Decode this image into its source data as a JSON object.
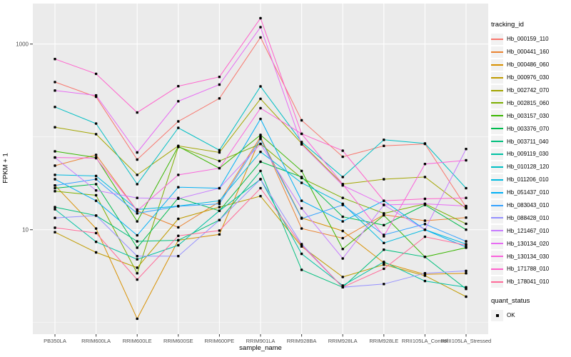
{
  "chart_data": {
    "type": "line",
    "title": "",
    "xlabel": "sample_name",
    "ylabel": "FPKM + 1",
    "y_scale": "log10",
    "ylim": [
      0.75,
      2730
    ],
    "y_tick_values": [
      10,
      1000
    ],
    "y_tick_labels": [
      "10",
      "1000"
    ],
    "y_minor_values": [
      1,
      100
    ],
    "grid": true,
    "legend_position": "right",
    "panel_bg": "#EBEBEB",
    "grid_major_color": "#FFFFFF",
    "grid_minor_color": "#FFFFFF",
    "tick_color": "#333333",
    "tick_label_color": "#4D4D4D",
    "point_marker": {
      "shape": "square",
      "color": "#000000",
      "size": 3.4
    },
    "legend_key_bg": "#F2F2F2",
    "categories": [
      "PB350LA",
      "RRIM600LA",
      "RRIM600LE",
      "RRIM600SE",
      "RRIM600PE",
      "RRIM901LA",
      "RRIM928BA",
      "RRIM928LA",
      "RRIM928LE",
      "RRII105LA_Control",
      "RRII105LA_Stressed"
    ],
    "legend": {
      "title": "tracking_id"
    },
    "legend2": {
      "title": "quant_status",
      "items": [
        {
          "label": "OK",
          "color": "#000000"
        }
      ]
    },
    "series": [
      {
        "name": "Hb_000159_110",
        "color": "#F8766D",
        "values": [
          390,
          270,
          57,
          147,
          260,
          1180,
          151,
          61,
          80,
          84,
          17.5
        ]
      },
      {
        "name": "Hb_000441_160",
        "color": "#EA8331",
        "values": [
          49,
          64,
          16,
          10.6,
          20,
          100,
          10.3,
          8.1,
          14.5,
          12.5,
          13.5
        ]
      },
      {
        "name": "Hb_000486_060",
        "color": "#D89000",
        "values": [
          30,
          10.3,
          1.1,
          7.7,
          8.9,
          98,
          13.4,
          9.7,
          4.4,
          3.3,
          3.4
        ]
      },
      {
        "name": "Hb_000976_030",
        "color": "#C09B00",
        "values": [
          9.4,
          5.7,
          3.9,
          13.1,
          17.5,
          23,
          6.6,
          3.1,
          4.2,
          3.2,
          1.9
        ]
      },
      {
        "name": "Hb_002742_070",
        "color": "#A3A500",
        "values": [
          127,
          107,
          39,
          80,
          68,
          257,
          85,
          31,
          35,
          37,
          17
        ]
      },
      {
        "name": "Hb_002815_060",
        "color": "#7CAE00",
        "values": [
          26,
          23.5,
          3.4,
          78,
          55,
          84,
          36,
          22,
          15,
          19,
          11.6
        ]
      },
      {
        "name": "Hb_003157_030",
        "color": "#39B600",
        "values": [
          70,
          60,
          12.3,
          79,
          46,
          105,
          43,
          6.2,
          14.3,
          5.1,
          6.4
        ]
      },
      {
        "name": "Hb_003376_070",
        "color": "#00BB4E",
        "values": [
          28,
          31,
          6.4,
          22,
          16,
          54,
          37,
          13.8,
          11.2,
          18.5,
          10
        ]
      },
      {
        "name": "Hb_003711_040",
        "color": "#00BF7D",
        "values": [
          17.5,
          14.2,
          7.5,
          7.7,
          12.7,
          43,
          3.7,
          2.4,
          6.1,
          5.1,
          2.3
        ]
      },
      {
        "name": "Hb_009119_030",
        "color": "#00C1A3",
        "values": [
          16.6,
          7.4,
          4.8,
          6.8,
          16,
          35,
          5.5,
          2.5,
          4.5,
          2.8,
          2.4
        ]
      },
      {
        "name": "Hb_010128_120",
        "color": "#00BFC4",
        "values": [
          210,
          139,
          31,
          125,
          72,
          350,
          88,
          37,
          93,
          85,
          28
        ]
      },
      {
        "name": "Hb_011206_010",
        "color": "#00BAE0",
        "values": [
          39,
          38,
          16.5,
          18,
          20.5,
          69,
          32,
          19,
          7.2,
          10,
          7
        ]
      },
      {
        "name": "Hb_051437_010",
        "color": "#00B0F6",
        "values": [
          35,
          20.5,
          8.7,
          28.7,
          28,
          156,
          20.5,
          12.3,
          20.5,
          10,
          6.5
        ]
      },
      {
        "name": "Hb_083043_010",
        "color": "#35A2FF",
        "values": [
          30,
          35,
          15,
          17.9,
          19,
          95,
          13.2,
          18.5,
          8.8,
          11.5,
          7.5
        ]
      },
      {
        "name": "Hb_088428_010",
        "color": "#9590FF",
        "values": [
          13.4,
          14.2,
          5.2,
          5.2,
          12.7,
          35,
          7,
          2.4,
          2.6,
          3.4,
          3.6
        ]
      },
      {
        "name": "Hb_121467_010",
        "color": "#C77CFF",
        "values": [
          60,
          26.5,
          22,
          21.6,
          28,
          84,
          17,
          4.9,
          18.5,
          10,
          74
        ]
      },
      {
        "name": "Hb_130134_020",
        "color": "#E76BF3",
        "values": [
          316,
          280,
          68,
          242,
          366,
          1520,
          83,
          30,
          18.5,
          19,
          18
        ]
      },
      {
        "name": "Hb_130134_030",
        "color": "#FA62DB",
        "values": [
          60,
          59,
          16,
          39,
          46,
          204,
          108,
          31,
          8.5,
          51,
          56
        ]
      },
      {
        "name": "Hb_171788_010",
        "color": "#FF61CC",
        "values": [
          690,
          478,
          183,
          352,
          443,
          1900,
          108,
          71,
          20.5,
          21.5,
          22
        ]
      },
      {
        "name": "Hb_178041_010",
        "color": "#FF6A98",
        "values": [
          10.5,
          9.2,
          2.9,
          8.6,
          9.8,
          28,
          6.8,
          2.4,
          3.8,
          8.4,
          6.8
        ]
      }
    ]
  }
}
